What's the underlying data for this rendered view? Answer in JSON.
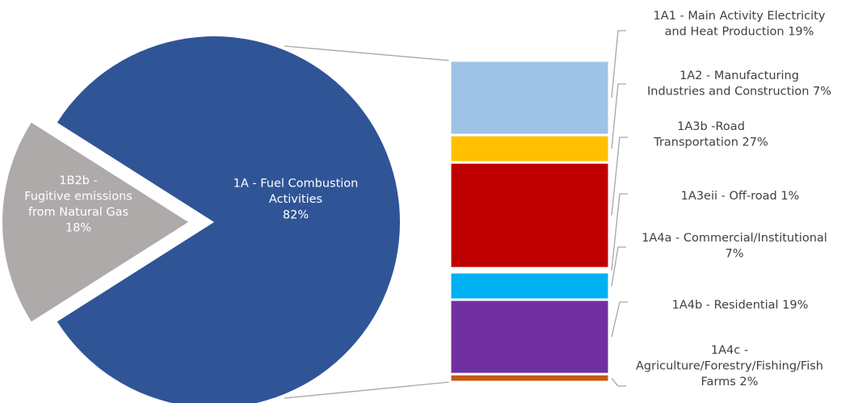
{
  "chart_data": {
    "type": "bar-of-pie",
    "pie": {
      "slices": [
        {
          "key": "1A",
          "lines": [
            "1A - Fuel Combustion",
            "Activities",
            "82%"
          ],
          "value": 82,
          "color": "#2f5597",
          "expanded": true
        },
        {
          "key": "1B2b",
          "lines": [
            "1B2b -",
            "Fugitive emissions",
            "from Natural Gas",
            "18%"
          ],
          "value": 18,
          "color": "#aeaaaa",
          "exploded": true
        }
      ]
    },
    "bar": {
      "segments": [
        {
          "key": "1A1",
          "lines": [
            "1A1 - Main Activity Electricity",
            "and Heat Production 19%"
          ],
          "value": 19,
          "color": "#9dc3e6"
        },
        {
          "key": "1A2",
          "lines": [
            "1A2 - Manufacturing",
            "Industries and Construction 7%"
          ],
          "value": 7,
          "color": "#ffc000"
        },
        {
          "key": "1A3b",
          "lines": [
            "1A3b -Road",
            "Transportation 27%"
          ],
          "value": 27,
          "color": "#c00000"
        },
        {
          "key": "1A3eii",
          "lines": [
            "1A3eii - Off-road 1%"
          ],
          "value": 1,
          "color": "#ffffff"
        },
        {
          "key": "1A4a",
          "lines": [
            "1A4a - Commercial/Institutional",
            "7%"
          ],
          "value": 7,
          "color": "#00b0f0"
        },
        {
          "key": "1A4b",
          "lines": [
            "1A4b - Residential 19%"
          ],
          "value": 19,
          "color": "#7030a0"
        },
        {
          "key": "1A4c",
          "lines": [
            "1A4c -",
            "Agriculture/Forestry/Fishing/Fish",
            "Farms 2%"
          ],
          "value": 2,
          "color": "#c55a11"
        }
      ]
    }
  }
}
